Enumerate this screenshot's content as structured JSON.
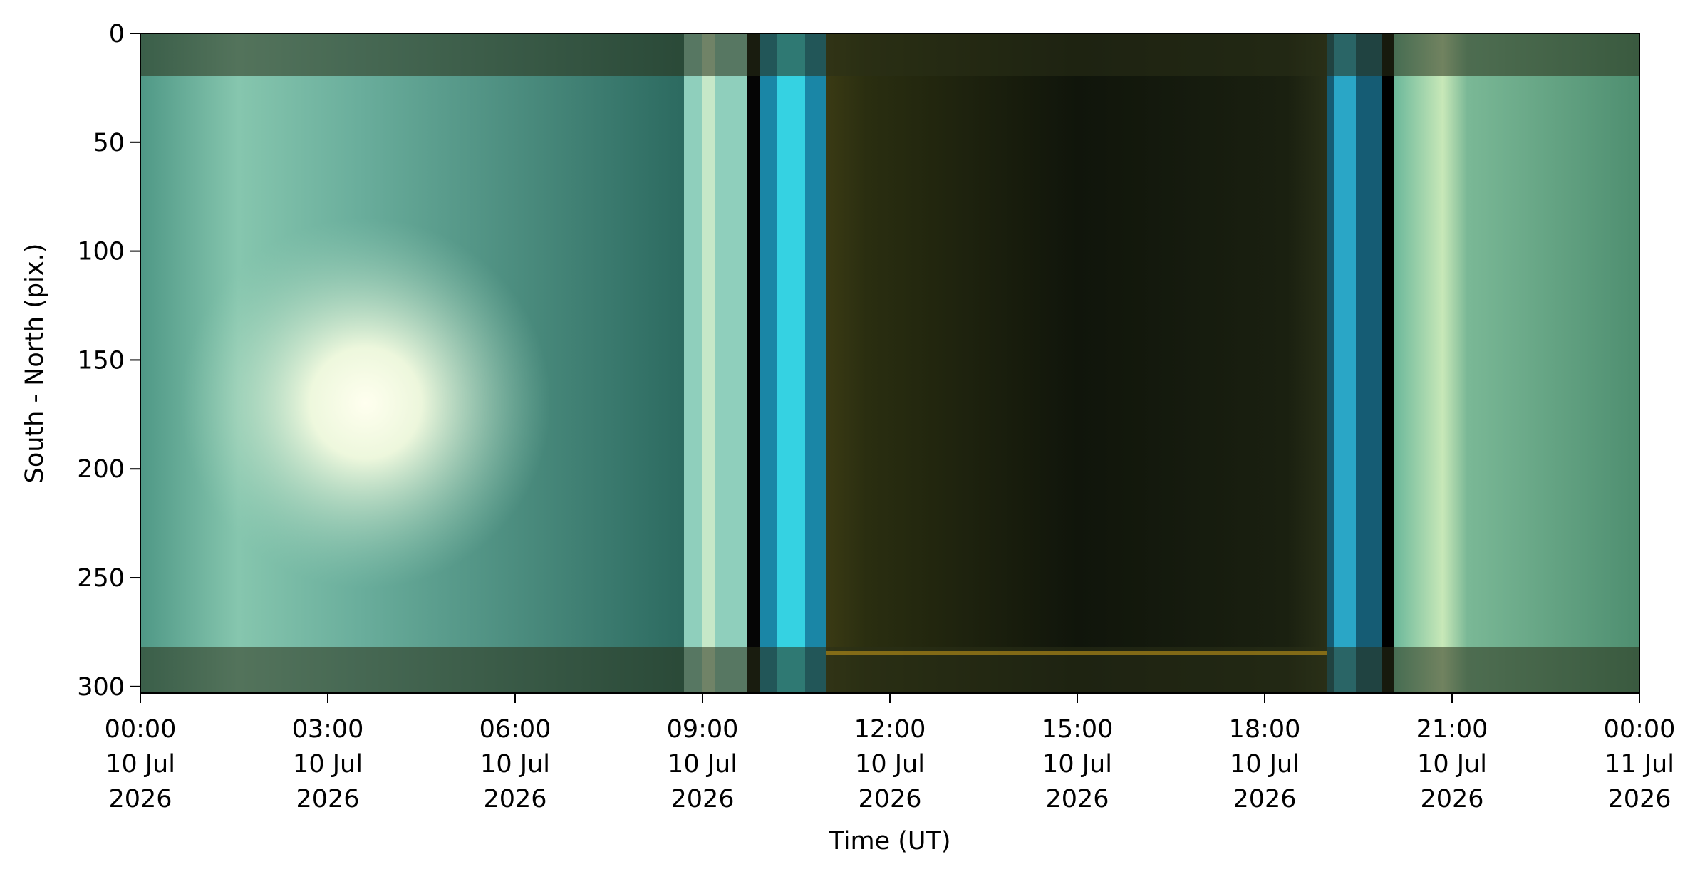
{
  "chart_data": {
    "type": "image",
    "xlabel": "Time (UT)",
    "ylabel": "South - North (pix.)",
    "xlim": [
      0,
      24
    ],
    "ylim": [
      0,
      303
    ],
    "y_inverted": true,
    "xticks": [
      {
        "value": 0,
        "label": [
          "00:00",
          "10 Jul",
          "2026"
        ]
      },
      {
        "value": 3,
        "label": [
          "03:00",
          "10 Jul",
          "2026"
        ]
      },
      {
        "value": 6,
        "label": [
          "06:00",
          "10 Jul",
          "2026"
        ]
      },
      {
        "value": 9,
        "label": [
          "09:00",
          "10 Jul",
          "2026"
        ]
      },
      {
        "value": 12,
        "label": [
          "12:00",
          "10 Jul",
          "2026"
        ]
      },
      {
        "value": 15,
        "label": [
          "15:00",
          "10 Jul",
          "2026"
        ]
      },
      {
        "value": 18,
        "label": [
          "18:00",
          "10 Jul",
          "2026"
        ]
      },
      {
        "value": 21,
        "label": [
          "21:00",
          "10 Jul",
          "2026"
        ]
      },
      {
        "value": 24,
        "label": [
          "00:00",
          "11 Jul",
          "2026"
        ]
      }
    ],
    "yticks": [
      0,
      50,
      100,
      150,
      200,
      250,
      300
    ]
  }
}
